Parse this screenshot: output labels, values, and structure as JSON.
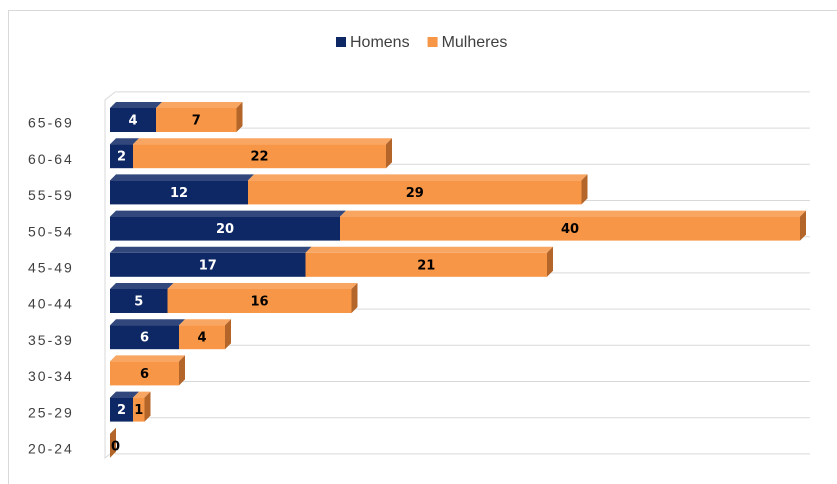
{
  "chart_data": {
    "type": "stacked_barh",
    "categories": [
      "65-69",
      "60-64",
      "55-59",
      "50-54",
      "45-49",
      "40-44",
      "35-39",
      "30-34",
      "25-29",
      "20-24"
    ],
    "series": [
      {
        "name": "Homens",
        "color": "#0e2865",
        "side": "#081a45",
        "values": [
          4,
          2,
          12,
          20,
          17,
          5,
          6,
          0,
          2,
          0
        ]
      },
      {
        "name": "Mulheres",
        "color": "#f79646",
        "side": "#b3652a",
        "values": [
          7,
          22,
          29,
          40,
          21,
          16,
          4,
          6,
          1,
          0
        ]
      }
    ],
    "legend": "top"
  }
}
